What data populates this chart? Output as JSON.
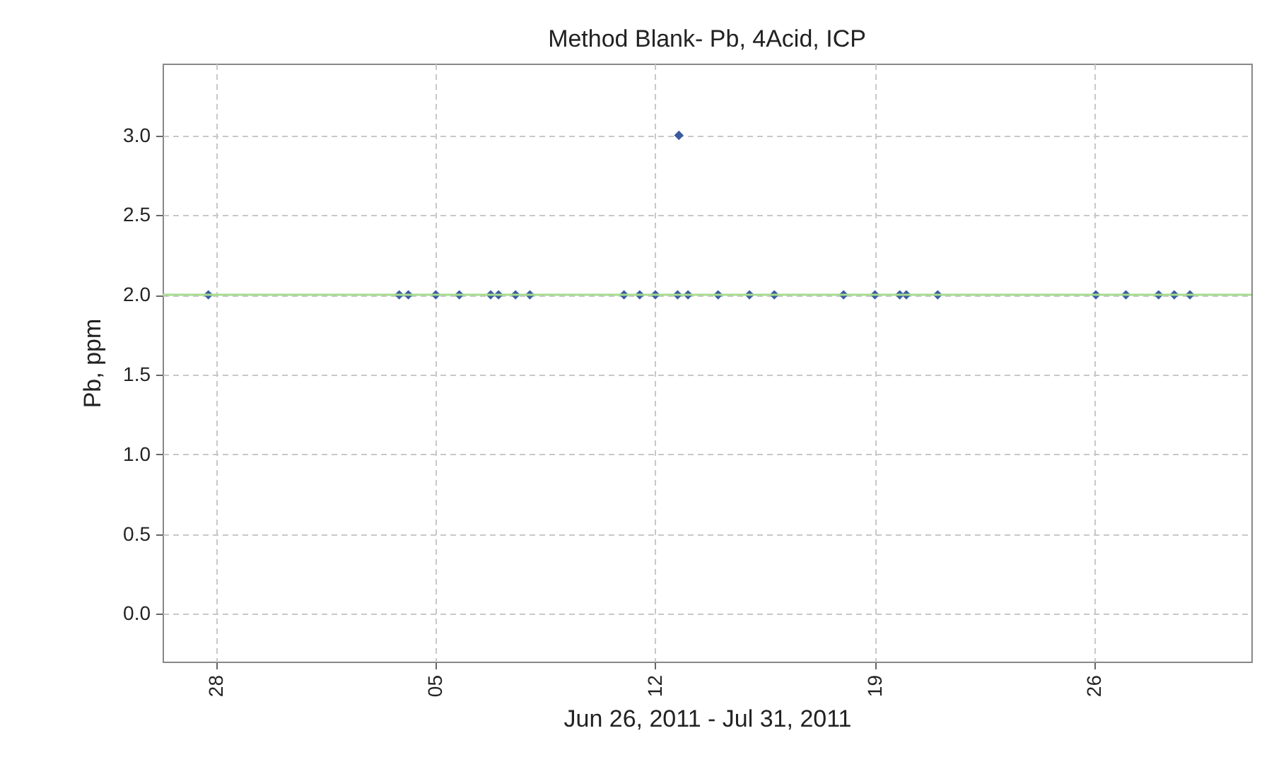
{
  "chart_data": {
    "type": "scatter",
    "title": "Method Blank- Pb, 4Acid, ICP",
    "xlabel": "Jun 26, 2011 - Jul 31, 2011",
    "ylabel": "Pb, ppm",
    "x": [
      "2011-06-27T18:00",
      "2011-07-03T20:00",
      "2011-07-04T03:00",
      "2011-07-05",
      "2011-07-05T18:00",
      "2011-07-06T18:00",
      "2011-07-07",
      "2011-07-07T13:00",
      "2011-07-08",
      "2011-07-11",
      "2011-07-11T12:00",
      "2011-07-12",
      "2011-07-12T17:00",
      "2011-07-12T18:00",
      "2011-07-13T01:00",
      "2011-07-14",
      "2011-07-15",
      "2011-07-15T19:00",
      "2011-07-18",
      "2011-07-19",
      "2011-07-19T19:00",
      "2011-07-20",
      "2011-07-21",
      "2011-07-26T01:00",
      "2011-07-27",
      "2011-07-28T01:00",
      "2011-07-28T13:00",
      "2011-07-29T01:00"
    ],
    "series": [
      {
        "color": "#3a5ba0",
        "values": [
          2,
          2,
          2,
          2,
          2,
          2,
          2,
          2,
          2,
          2,
          2,
          2,
          2,
          3,
          2,
          2,
          2,
          2,
          2,
          2,
          2,
          2,
          2,
          2,
          2,
          2,
          2,
          2
        ]
      }
    ],
    "xlim": [
      "2011-06-26T07:00",
      "2011-07-31"
    ],
    "xticks": [
      {
        "value": "2011-06-28",
        "label": "28"
      },
      {
        "value": "2011-07-05",
        "label": "05"
      },
      {
        "value": "2011-07-12",
        "label": "12"
      },
      {
        "value": "2011-07-19",
        "label": "19"
      },
      {
        "value": "2011-07-26",
        "label": "26"
      }
    ],
    "ylim": [
      -0.3,
      3.45
    ],
    "yticks": [
      {
        "value": 0,
        "label": "0.0"
      },
      {
        "value": 0.5,
        "label": "0.5"
      },
      {
        "value": 1,
        "label": "1.0"
      },
      {
        "value": 1.5,
        "label": "1.5"
      },
      {
        "value": 2,
        "label": "2.0"
      },
      {
        "value": 2.5,
        "label": "2.5"
      },
      {
        "value": 3,
        "label": "3.0"
      }
    ],
    "ref_lines": [
      {
        "axis": "y",
        "value": 2,
        "color": "#a6dc8f"
      }
    ],
    "grid": true,
    "marker": "diamond",
    "legend": false
  }
}
